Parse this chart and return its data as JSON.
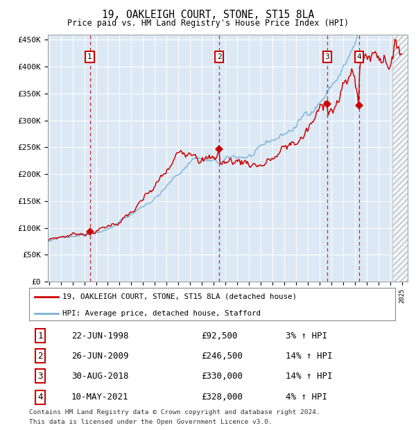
{
  "title": "19, OAKLEIGH COURT, STONE, ST15 8LA",
  "subtitle": "Price paid vs. HM Land Registry's House Price Index (HPI)",
  "ytick_values": [
    0,
    50000,
    100000,
    150000,
    200000,
    250000,
    300000,
    350000,
    400000,
    450000
  ],
  "ylim": [
    0,
    460000
  ],
  "xlim_start": 1994.9,
  "xlim_end": 2025.5,
  "bg_color": "#dce9f5",
  "red_line_color": "#cc0000",
  "blue_line_color": "#7ab0d4",
  "transactions": [
    {
      "num": 1,
      "date_label": "22-JUN-1998",
      "date_x": 1998.47,
      "price": 92500,
      "hpi_pct": "3%"
    },
    {
      "num": 2,
      "date_label": "26-JUN-2009",
      "date_x": 2009.48,
      "price": 246500,
      "hpi_pct": "14%"
    },
    {
      "num": 3,
      "date_label": "30-AUG-2018",
      "date_x": 2018.66,
      "price": 330000,
      "hpi_pct": "14%"
    },
    {
      "num": 4,
      "date_label": "10-MAY-2021",
      "date_x": 2021.36,
      "price": 328000,
      "hpi_pct": "4%"
    }
  ],
  "legend_red_label": "19, OAKLEIGH COURT, STONE, ST15 8LA (detached house)",
  "legend_blue_label": "HPI: Average price, detached house, Stafford",
  "footer_line1": "Contains HM Land Registry data © Crown copyright and database right 2024.",
  "footer_line2": "This data is licensed under the Open Government Licence v3.0."
}
